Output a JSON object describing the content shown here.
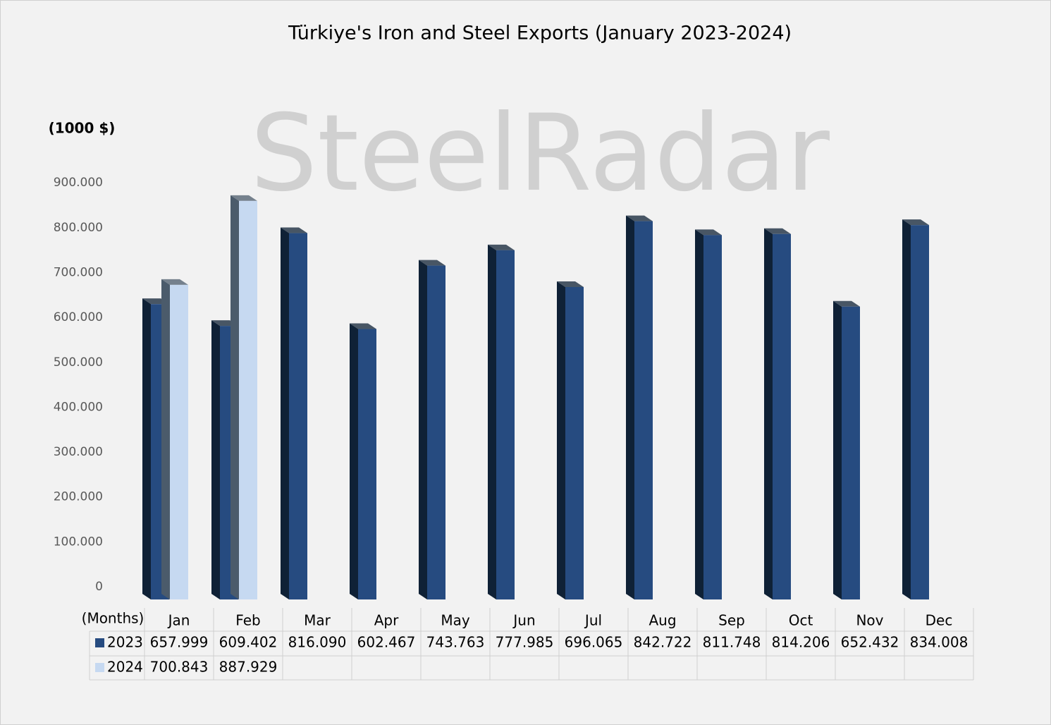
{
  "chart_data": {
    "type": "bar3d",
    "title": "Türkiye's Iron and Steel Exports (January 2023-2024)",
    "y_label": "(1000 $)",
    "x_label": "(Months)",
    "watermark": "SteelRadar",
    "categories": [
      "Jan",
      "Feb",
      "Mar",
      "Apr",
      "May",
      "Jun",
      "Jul",
      "Aug",
      "Sep",
      "Oct",
      "Nov",
      "Dec"
    ],
    "series": [
      {
        "name": "2023",
        "color": "#264b80",
        "side_color": "#0f2136",
        "values": [
          657999,
          609402,
          816090,
          602467,
          743763,
          777985,
          696065,
          842722,
          811748,
          814206,
          652432,
          834008
        ],
        "value_labels": [
          "657.999",
          "609.402",
          "816.090",
          "602.467",
          "743.763",
          "777.985",
          "696.065",
          "842.722",
          "811.748",
          "814.206",
          "652.432",
          "834.008"
        ]
      },
      {
        "name": "2024",
        "color": "#c6d9f1",
        "side_color": "#4b5b6b",
        "values": [
          700843,
          887929,
          null,
          null,
          null,
          null,
          null,
          null,
          null,
          null,
          null,
          null
        ],
        "value_labels": [
          "700.843",
          "887.929",
          null,
          null,
          null,
          null,
          null,
          null,
          null,
          null,
          null,
          null
        ]
      }
    ],
    "ylim": [
      0,
      900000
    ],
    "yticks": [
      0,
      {
        "value": 100000,
        "label": "100.000"
      },
      {
        "value": 200000,
        "label": "200.000"
      },
      {
        "value": 300000,
        "label": "300.000"
      },
      {
        "value": 400000,
        "label": "400.000"
      },
      {
        "value": 500000,
        "label": "500.000"
      },
      {
        "value": 600000,
        "label": "600.000"
      },
      {
        "value": 700000,
        "label": "700.000"
      },
      {
        "value": 800000,
        "label": "800.000"
      },
      {
        "value": 900000,
        "label": "900.000"
      }
    ],
    "grid": false
  }
}
